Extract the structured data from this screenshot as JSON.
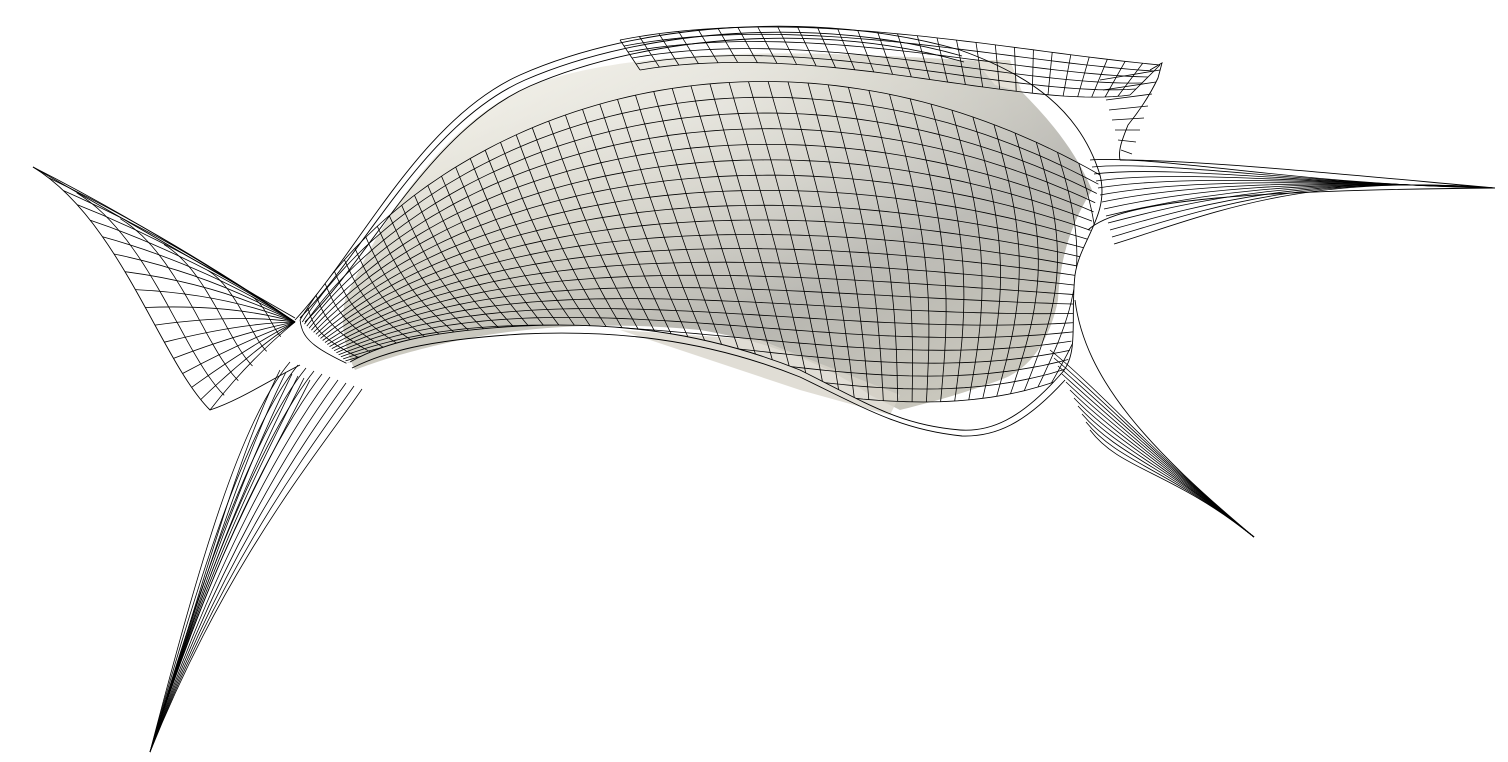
{
  "scene": {
    "background_color": "#ffffff",
    "wire_color": "#000000",
    "surface_light_color": "#ece9df",
    "surface_dark_color": "#b9b8b2"
  }
}
